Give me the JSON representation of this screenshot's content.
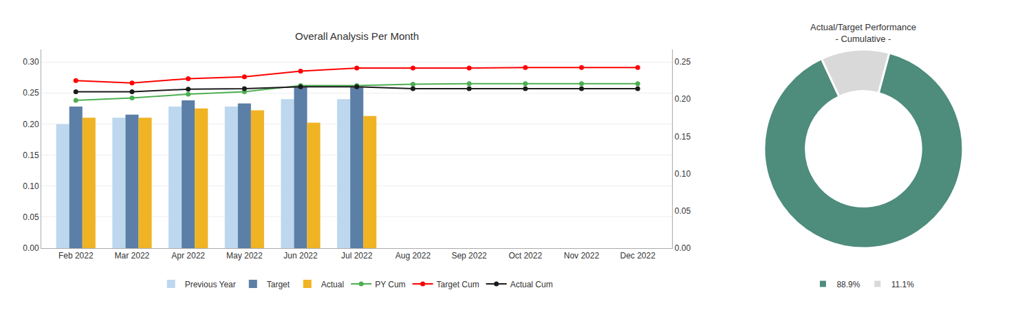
{
  "chart_data": [
    {
      "type": "bar",
      "title": "Overall Analysis Per Month",
      "categories": [
        "Feb 2022",
        "Mar 2022",
        "Apr 2022",
        "May 2022",
        "Jun 2022",
        "Jul 2022",
        "Aug 2022",
        "Sep 2022",
        "Oct 2022",
        "Nov 2022",
        "Dec 2022"
      ],
      "series": [
        {
          "name": "Previous Year",
          "type": "bar",
          "color": "#BDD7EE",
          "values": [
            0.2,
            0.21,
            0.228,
            0.228,
            0.24,
            0.24,
            null,
            null,
            null,
            null,
            null
          ]
        },
        {
          "name": "Target",
          "type": "bar",
          "color": "#5B7FA6",
          "values": [
            0.228,
            0.215,
            0.238,
            0.233,
            0.26,
            0.26,
            null,
            null,
            null,
            null,
            null
          ]
        },
        {
          "name": "Actual",
          "type": "bar",
          "color": "#F0B323",
          "values": [
            0.21,
            0.21,
            0.225,
            0.222,
            0.202,
            0.213,
            null,
            null,
            null,
            null,
            null
          ]
        },
        {
          "name": "PY Cum",
          "type": "line",
          "marker": "circle",
          "color": "#4CAF50",
          "values": [
            0.238,
            0.242,
            0.248,
            0.252,
            0.262,
            0.262,
            0.264,
            0.265,
            0.265,
            0.265,
            0.265
          ]
        },
        {
          "name": "Target Cum",
          "type": "line",
          "marker": "circle",
          "color": "#FF0000",
          "values": [
            0.27,
            0.266,
            0.273,
            0.276,
            0.285,
            0.29,
            0.29,
            0.29,
            0.291,
            0.291,
            0.291
          ]
        },
        {
          "name": "Actual Cum",
          "type": "line",
          "marker": "circle",
          "color": "#1A1A1A",
          "values": [
            0.252,
            0.252,
            0.256,
            0.257,
            0.26,
            0.26,
            0.257,
            0.257,
            0.257,
            0.257,
            0.257
          ]
        }
      ],
      "ylim": [
        0.0,
        0.32
      ],
      "yticks": [
        {
          "value": 0,
          "label": "0.00"
        },
        0.05,
        {
          "value": 0.1,
          "label": "0.10"
        },
        0.15,
        {
          "value": 0.2,
          "label": "0.20"
        },
        0.25,
        {
          "value": 0.3,
          "label": "0.30"
        }
      ],
      "y2lim": [
        0.0,
        0.2667
      ],
      "y2ticks": [
        {
          "value": 0,
          "label": "0.00"
        },
        0.05,
        {
          "value": 0.1,
          "label": "0.10"
        },
        0.15,
        {
          "value": 0.2,
          "label": "0.20"
        },
        0.25
      ],
      "grid": true,
      "legend": "bottom"
    },
    {
      "type": "pie",
      "title": "Actual/Target Performance\n- Cumulative -",
      "values": [
        88.9,
        11.1
      ],
      "value_labels": [
        "88.9%",
        "11.1%"
      ],
      "colors": [
        "#4E8C7C",
        "#D9D9D9"
      ],
      "legend": "bottom"
    }
  ]
}
